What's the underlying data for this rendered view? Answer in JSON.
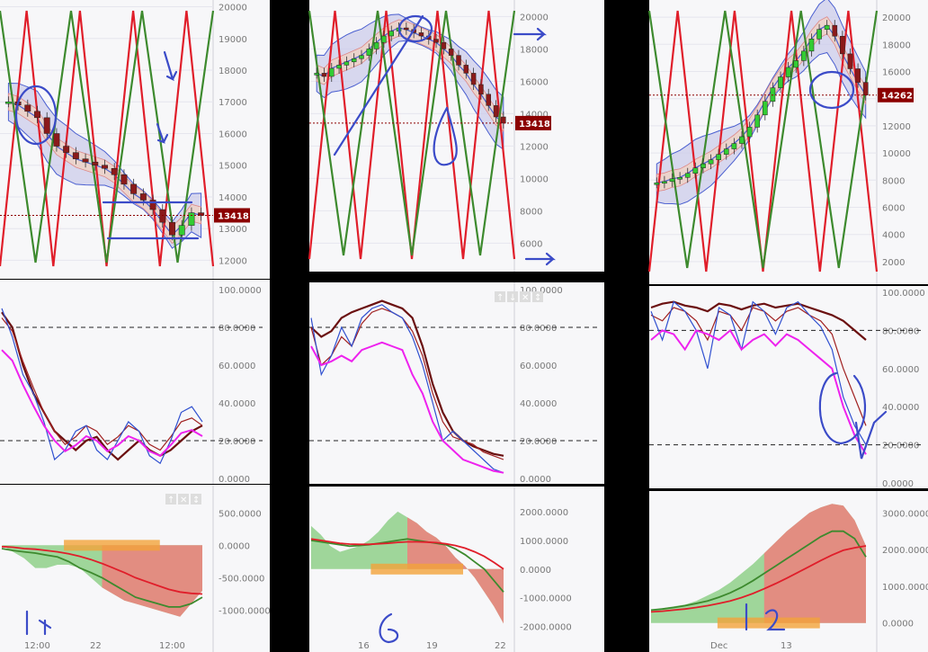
{
  "colors": {
    "background": "#f7f7f9",
    "separator": "#000000",
    "grid": "#e6e6ee",
    "axis_text": "#777777",
    "price_tag_bg": "#8b0000",
    "bull_candle": "#33cc33",
    "bear_candle": "#8b1a1a",
    "band_fill": "#c9c9ea",
    "band_line": "#4a5fd0",
    "inner_band_fill": "#f2d2c0",
    "trend_red": "#e01e2a",
    "trend_green": "#3d8a2e",
    "stoch_blue": "#3050d0",
    "stoch_magenta": "#ee22ee",
    "stoch_brown": "#6b1010",
    "hist_green": "#8fd08a",
    "hist_red": "#f27a7a",
    "hist_orange": "#f2a23a",
    "macd_line": "#3d8a2e",
    "signal_line": "#e01e2a",
    "pen": "#3b4bc8"
  },
  "panel_icons": {
    "left_lower": [
      "↑",
      "✕",
      "↕"
    ],
    "middle_middle": [
      "↑",
      "↓",
      "✕",
      "↕"
    ]
  },
  "chart_data": [
    {
      "type": "line",
      "panel": "left",
      "y_ticks": [
        "20000",
        "19000",
        "18000",
        "17000",
        "16000",
        "15000",
        "14000",
        "13000",
        "12000"
      ],
      "ylim": [
        11700,
        20100
      ],
      "x_ticks": [
        "12:00",
        "22",
        "12:00"
      ],
      "price_tag": "13418",
      "current_price": 13418,
      "candles": [
        17000,
        16900,
        16700,
        16500,
        16000,
        15600,
        15400,
        15200,
        15100,
        15000,
        14900,
        14700,
        14400,
        14100,
        13900,
        13600,
        13200,
        12800,
        13100,
        13500,
        13418
      ],
      "stoch": {
        "y_ticks": [
          "100.0000",
          "80.0000",
          "60.0000",
          "40.0000",
          "20.0000",
          "0.0000"
        ],
        "ylim": [
          0,
          100
        ],
        "levels": [
          80,
          20
        ],
        "fast": [
          90,
          75,
          55,
          45,
          30,
          10,
          15,
          25,
          28,
          15,
          10,
          20,
          30,
          25,
          12,
          8,
          20,
          35,
          38,
          30
        ],
        "slow": [
          88,
          80,
          60,
          45,
          35,
          25,
          20,
          15,
          20,
          22,
          15,
          10,
          15,
          20,
          15,
          12,
          15,
          20,
          25,
          28
        ],
        "mid": [
          85,
          78,
          62,
          48,
          35,
          25,
          18,
          22,
          28,
          25,
          18,
          22,
          28,
          25,
          18,
          15,
          22,
          30,
          32,
          28
        ]
      },
      "macd": {
        "y_ticks": [
          "500.0000",
          "0.0000",
          "-500.0000",
          "-1000.0000"
        ],
        "ylim": [
          -1450,
          850
        ],
        "histogram": [
          0,
          -100,
          -200,
          -350,
          -350,
          -300,
          -300,
          -350,
          -500,
          -650,
          -750,
          -850,
          -900,
          -950,
          -1000,
          -1050,
          -1100,
          -900,
          -700
        ],
        "macd": [
          -50,
          -80,
          -100,
          -120,
          -150,
          -180,
          -250,
          -350,
          -420,
          -500,
          -600,
          -700,
          -800,
          -850,
          -900,
          -950,
          -950,
          -900,
          -800
        ],
        "signal": [
          -20,
          -30,
          -50,
          -60,
          -80,
          -100,
          -130,
          -170,
          -220,
          -280,
          -350,
          -420,
          -500,
          -560,
          -620,
          -680,
          -720,
          -740,
          -750
        ]
      }
    },
    {
      "type": "line",
      "panel": "middle",
      "y_ticks": [
        "20000",
        "18000",
        "16000",
        "14000",
        "12000",
        "10000",
        "8000",
        "6000"
      ],
      "ylim": [
        4800,
        20800
      ],
      "x_ticks": [
        "16",
        "19",
        "22"
      ],
      "price_tag": "13418",
      "current_price": 13418,
      "candles": [
        16500,
        16300,
        16800,
        17000,
        17200,
        17400,
        17600,
        18000,
        18400,
        18800,
        19100,
        19300,
        19200,
        19000,
        18800,
        18600,
        18400,
        18000,
        17600,
        17000,
        16500,
        15800,
        15200,
        14500,
        13800,
        13418
      ],
      "stoch": {
        "y_ticks": [
          "100.0000",
          "80.0000",
          "60.0000",
          "40.0000",
          "20.0000",
          "0.0000"
        ],
        "ylim": [
          0,
          100
        ],
        "levels": [
          80,
          20
        ],
        "fast": [
          85,
          55,
          65,
          80,
          70,
          85,
          90,
          92,
          88,
          85,
          75,
          60,
          40,
          20,
          25,
          20,
          15,
          10,
          5,
          3
        ],
        "slow": [
          80,
          75,
          78,
          85,
          88,
          90,
          92,
          94,
          92,
          90,
          85,
          70,
          50,
          35,
          25,
          20,
          17,
          15,
          13,
          12
        ],
        "mid": [
          80,
          60,
          65,
          75,
          70,
          82,
          88,
          90,
          88,
          85,
          78,
          65,
          45,
          30,
          22,
          20,
          18,
          14,
          12,
          10
        ],
        "magenta": [
          70,
          60,
          62,
          65,
          62,
          68,
          70,
          72,
          70,
          68,
          55,
          45,
          30,
          20,
          15,
          10,
          8,
          6,
          4,
          3
        ]
      },
      "macd": {
        "y_ticks": [
          "2000.0000",
          "1000.0000",
          "0.0000",
          "-1000.0000",
          "-2000.0000"
        ],
        "ylim": [
          -2450,
          2750
        ],
        "histogram": [
          1500,
          1200,
          800,
          600,
          700,
          800,
          1000,
          1300,
          1700,
          2000,
          1800,
          1600,
          1300,
          1100,
          800,
          400,
          100,
          -300,
          -800,
          -1300,
          -1900
        ],
        "macd": [
          1000,
          950,
          900,
          850,
          800,
          820,
          850,
          900,
          950,
          1000,
          1050,
          1000,
          950,
          900,
          850,
          700,
          500,
          250,
          0,
          -400,
          -800
        ],
        "signal": [
          1050,
          1000,
          950,
          900,
          870,
          860,
          860,
          880,
          900,
          930,
          950,
          950,
          940,
          920,
          880,
          820,
          730,
          600,
          440,
          230,
          0
        ]
      }
    },
    {
      "type": "line",
      "panel": "right",
      "y_ticks": [
        "20000",
        "18000",
        "16000",
        "14000",
        "12000",
        "10000",
        "8000",
        "6000",
        "4000",
        "2000"
      ],
      "ylim": [
        1000,
        21000
      ],
      "x_ticks": [
        "Dec",
        "13"
      ],
      "price_tag": "14262",
      "current_price": 14262,
      "candles": [
        7800,
        7900,
        8100,
        8200,
        8500,
        8900,
        9200,
        9500,
        9900,
        10300,
        10700,
        11200,
        11900,
        12800,
        13800,
        14800,
        15600,
        16300,
        16800,
        17500,
        18400,
        19100,
        19400,
        18600,
        17300,
        16200,
        15200,
        14262
      ],
      "stoch": {
        "y_ticks": [
          "100.0000",
          "80.0000",
          "60.0000",
          "40.0000",
          "20.0000",
          "0.0000"
        ],
        "ylim": [
          0,
          100
        ],
        "levels": [
          80,
          20
        ],
        "fast": [
          90,
          75,
          95,
          90,
          80,
          60,
          92,
          88,
          70,
          95,
          90,
          78,
          92,
          95,
          88,
          82,
          70,
          45,
          30,
          20
        ],
        "slow": [
          92,
          94,
          95,
          93,
          92,
          90,
          94,
          93,
          91,
          93,
          94,
          92,
          93,
          94,
          92,
          90,
          88,
          85,
          80,
          75
        ],
        "mid": [
          88,
          85,
          92,
          90,
          85,
          75,
          90,
          88,
          80,
          92,
          90,
          85,
          90,
          92,
          88,
          85,
          78,
          60,
          45,
          30
        ],
        "magenta": [
          75,
          80,
          78,
          70,
          80,
          78,
          75,
          80,
          70,
          75,
          78,
          72,
          78,
          75,
          70,
          65,
          60,
          40,
          25,
          15
        ]
      },
      "macd": {
        "y_ticks": [
          "3000.0000",
          "2000.0000",
          "1000.0000",
          "0.0000"
        ],
        "ylim": [
          -450,
          3450
        ],
        "histogram": [
          350,
          400,
          450,
          500,
          600,
          750,
          900,
          1100,
          1350,
          1600,
          1900,
          2200,
          2500,
          2750,
          3000,
          3150,
          3250,
          3200,
          2800,
          2100
        ],
        "macd": [
          350,
          380,
          420,
          470,
          530,
          600,
          700,
          820,
          970,
          1150,
          1350,
          1550,
          1750,
          1950,
          2150,
          2350,
          2500,
          2500,
          2300,
          1800
        ],
        "signal": [
          300,
          320,
          350,
          380,
          420,
          470,
          530,
          600,
          690,
          800,
          930,
          1070,
          1220,
          1380,
          1540,
          1700,
          1850,
          1980,
          2050,
          2100
        ]
      }
    }
  ],
  "annotations": {
    "left_number": "14",
    "middle_number": "6",
    "right_number": "12"
  }
}
